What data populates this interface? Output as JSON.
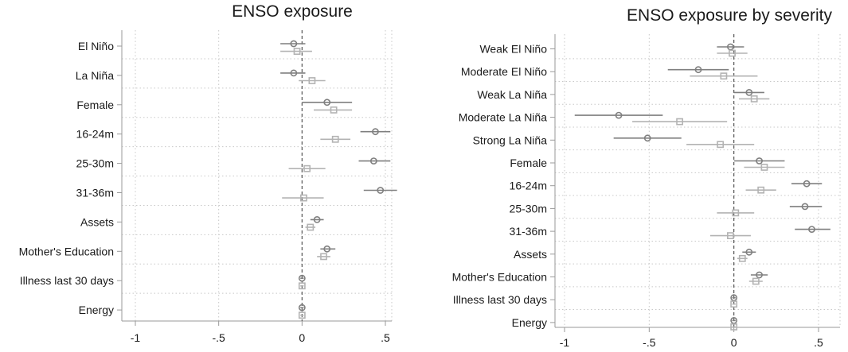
{
  "chart_data": [
    {
      "type": "scatter",
      "subtype": "coefficient-plot",
      "title": "ENSO exposure",
      "xlim": [
        -1,
        0.5
      ],
      "xticks": [
        -1,
        -0.5,
        0,
        0.5
      ],
      "xtick_labels": [
        "-1",
        "-.5",
        "0",
        ".5"
      ],
      "reference_line_x": 0,
      "grid": true,
      "categories": [
        "El Niño",
        "La Niña",
        "Female",
        "16-24m",
        "25-30m",
        "31-36m",
        "Assets",
        "Mother's Education",
        "Illness last 30 days",
        "Energy"
      ],
      "series": [
        {
          "marker": "circle",
          "color": "#7f7f7f",
          "values": [
            -0.05,
            -0.05,
            0.15,
            0.44,
            0.43,
            0.47,
            0.09,
            0.15,
            0.0,
            0.0
          ],
          "ci_low": [
            -0.13,
            -0.13,
            0.0,
            0.35,
            0.34,
            0.37,
            0.05,
            0.11,
            -0.01,
            -0.01
          ],
          "ci_high": [
            0.02,
            0.02,
            0.3,
            0.53,
            0.53,
            0.57,
            0.13,
            0.2,
            0.01,
            0.01
          ]
        },
        {
          "marker": "square",
          "color": "#b3b3b3",
          "values": [
            -0.03,
            0.06,
            0.19,
            0.2,
            0.03,
            0.01,
            0.05,
            0.13,
            0.0,
            0.0
          ],
          "ci_low": [
            -0.13,
            -0.02,
            0.07,
            0.11,
            -0.08,
            -0.12,
            0.02,
            0.09,
            -0.01,
            -0.01
          ],
          "ci_high": [
            0.06,
            0.14,
            0.3,
            0.29,
            0.14,
            0.13,
            0.08,
            0.17,
            0.01,
            0.01
          ]
        }
      ]
    },
    {
      "type": "scatter",
      "subtype": "coefficient-plot",
      "title": "ENSO exposure by severity",
      "xlim": [
        -1,
        0.5
      ],
      "xticks": [
        -1,
        -0.5,
        0,
        0.5
      ],
      "xtick_labels": [
        "-1",
        "-.5",
        "0",
        ".5"
      ],
      "reference_line_x": 0,
      "grid": true,
      "categories": [
        "Weak El Niño",
        "Moderate El Niño",
        "Weak La Niña",
        "Moderate La Niña",
        "Strong La Niña",
        "Female",
        "16-24m",
        "25-30m",
        "31-36m",
        "Assets",
        "Mother's Education",
        "Illness last 30 days",
        "Energy"
      ],
      "series": [
        {
          "marker": "circle",
          "color": "#7f7f7f",
          "values": [
            -0.02,
            -0.21,
            0.09,
            -0.68,
            -0.51,
            0.15,
            0.43,
            0.42,
            0.46,
            0.09,
            0.15,
            0.0,
            0.0
          ],
          "ci_low": [
            -0.1,
            -0.39,
            0.0,
            -0.94,
            -0.71,
            0.0,
            0.34,
            0.33,
            0.36,
            0.05,
            0.1,
            -0.01,
            -0.01
          ],
          "ci_high": [
            0.06,
            -0.03,
            0.18,
            -0.42,
            -0.31,
            0.3,
            0.52,
            0.52,
            0.57,
            0.13,
            0.2,
            0.01,
            0.01
          ]
        },
        {
          "marker": "square",
          "color": "#b3b3b3",
          "values": [
            -0.01,
            -0.06,
            0.12,
            -0.32,
            -0.08,
            0.18,
            0.16,
            0.01,
            -0.02,
            0.05,
            0.13,
            0.0,
            0.0
          ],
          "ci_low": [
            -0.1,
            -0.26,
            0.03,
            -0.6,
            -0.28,
            0.06,
            0.07,
            -0.1,
            -0.14,
            0.02,
            0.09,
            -0.01,
            -0.01
          ],
          "ci_high": [
            0.08,
            0.14,
            0.21,
            -0.04,
            0.12,
            0.3,
            0.25,
            0.12,
            0.1,
            0.08,
            0.17,
            0.01,
            0.01
          ]
        }
      ]
    }
  ]
}
